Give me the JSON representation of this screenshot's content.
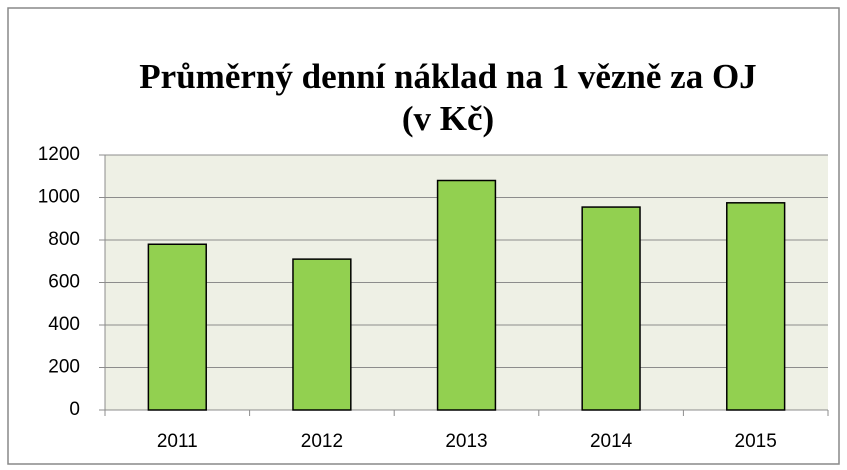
{
  "chart_data": {
    "type": "bar",
    "title": [
      "Průměrný denní náklad na 1 vězně za OJ",
      "(v Kč)"
    ],
    "categories": [
      "2011",
      "2012",
      "2013",
      "2014",
      "2015"
    ],
    "values": [
      780,
      710,
      1080,
      955,
      975
    ],
    "color": "#92d050",
    "ylim": [
      0,
      1200
    ],
    "yticks": [
      0,
      200,
      400,
      600,
      800,
      1000,
      1200
    ],
    "grid": true
  }
}
